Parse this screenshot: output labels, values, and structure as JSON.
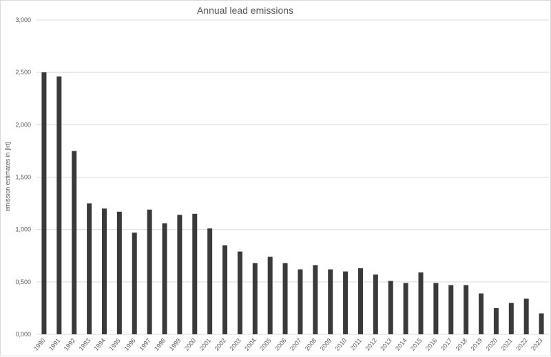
{
  "chart_data": {
    "type": "bar",
    "title": "Annual lead emissions",
    "xlabel": "",
    "ylabel": "emission estimates in [kt]",
    "categories": [
      "1990",
      "1991",
      "1992",
      "1993",
      "1994",
      "1995",
      "1996",
      "1997",
      "1998",
      "1999",
      "2000",
      "2001",
      "2002",
      "2003",
      "2004",
      "2005",
      "2006",
      "2007",
      "2008",
      "2009",
      "2010",
      "2011",
      "2012",
      "2013",
      "2014",
      "2015",
      "2016",
      "2017",
      "2018",
      "2019",
      "2020",
      "2021",
      "2022",
      "2023"
    ],
    "values": [
      2.5,
      2.46,
      1.75,
      1.25,
      1.2,
      1.17,
      0.97,
      1.19,
      1.06,
      1.14,
      1.15,
      1.01,
      0.85,
      0.79,
      0.68,
      0.74,
      0.68,
      0.62,
      0.66,
      0.62,
      0.6,
      0.63,
      0.57,
      0.51,
      0.49,
      0.59,
      0.49,
      0.47,
      0.47,
      0.39,
      0.25,
      0.3,
      0.34,
      0.2
    ],
    "ylim": [
      0,
      3.0
    ],
    "yticks": [
      0,
      0.5,
      1.0,
      1.5,
      2.0,
      2.5,
      3.0
    ],
    "ytick_labels": [
      "0,000",
      "0,500",
      "1,000",
      "1,500",
      "2,000",
      "2,500",
      "3,000"
    ],
    "grid": true,
    "legend": "none",
    "bar_color": "#3a3a3a",
    "grid_color": "#d9d9d9"
  }
}
